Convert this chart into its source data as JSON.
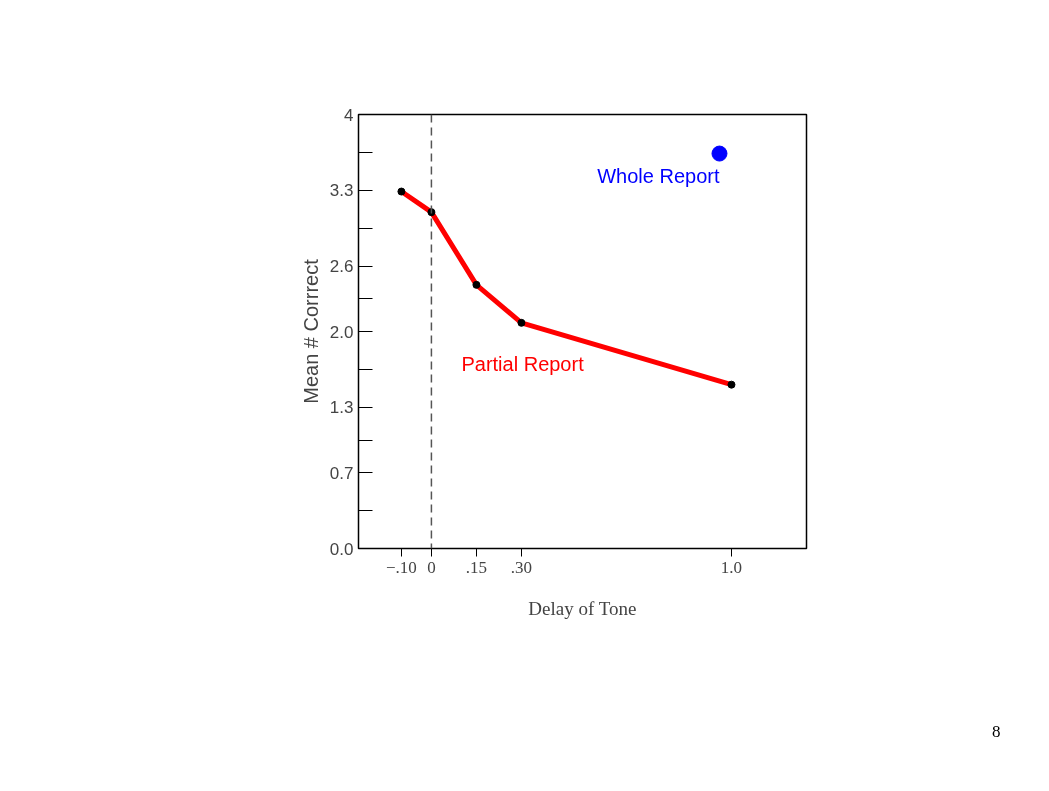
{
  "chart_data": {
    "type": "line",
    "xlabel": "Delay of Tone",
    "ylabel": "Mean # Corrrect",
    "xlim": [
      -0.243,
      1.25
    ],
    "ylim": [
      0,
      4
    ],
    "xticks": [
      {
        "value": -0.1,
        "label": "−.10"
      },
      {
        "value": 0,
        "label": "0"
      },
      {
        "value": 0.15,
        "label": ".15"
      },
      {
        "value": 0.3,
        "label": ".30"
      },
      {
        "value": 1.0,
        "label": "1.0"
      }
    ],
    "yticks": [
      {
        "value": 0,
        "label": "0.0"
      },
      {
        "value": 0.35,
        "label": null
      },
      0.7,
      {
        "value": 1.0,
        "label": null
      },
      1.3,
      {
        "value": 1.65,
        "label": null
      },
      {
        "value": 2.0,
        "label": "2.0"
      },
      {
        "value": 2.3,
        "label": null
      },
      2.6,
      {
        "value": 2.95,
        "label": null
      },
      3.3,
      {
        "value": 3.65,
        "label": null
      },
      4
    ],
    "series": [
      {
        "name": "Partial Report",
        "color": "#ff0000",
        "x": [
          -0.1,
          0,
          0.15,
          0.3,
          1.0
        ],
        "values": [
          3.29,
          3.1,
          2.43,
          2.08,
          1.51
        ],
        "marker": "circle"
      },
      {
        "name": "Whole Report",
        "type": "scatter",
        "color": "#0000ff",
        "x": [
          0.96
        ],
        "values": [
          3.64
        ]
      }
    ],
    "ref_lines": [
      {
        "axis": "x",
        "value": 0,
        "label": null,
        "color": "#555555",
        "line_style": "dashed"
      }
    ],
    "grid": false,
    "legend": false,
    "annotations": [
      "8"
    ]
  }
}
